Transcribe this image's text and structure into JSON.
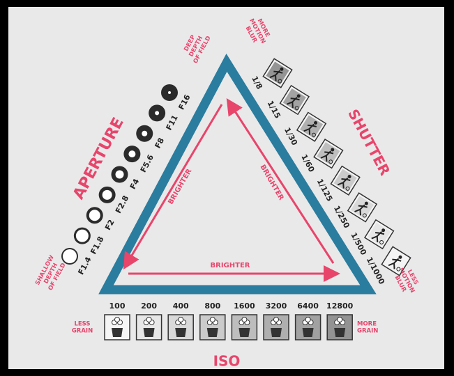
{
  "aperture": {
    "title": "APERTURE",
    "stops": [
      "F1.4",
      "F1.8",
      "F2",
      "F2.8",
      "F4",
      "F5.6",
      "F8",
      "F11",
      "F16"
    ],
    "start_label": [
      "SHALLOW",
      "DEPTH",
      "OF FIELD"
    ],
    "end_label": [
      "DEEP",
      "DEPTH",
      "OF FIELD"
    ]
  },
  "shutter": {
    "title": "SHUTTER",
    "speeds": [
      "1/8",
      "1/15",
      "1/30",
      "1/60",
      "1/125",
      "1/250",
      "1/500",
      "1/1000"
    ],
    "start_label": [
      "MORE",
      "MOTION",
      "BLUR"
    ],
    "end_label": [
      "LESS",
      "MOTION",
      "BLUR"
    ]
  },
  "iso": {
    "title": "ISO",
    "values": [
      "100",
      "200",
      "400",
      "800",
      "1600",
      "3200",
      "6400",
      "12800"
    ],
    "start_label": [
      "LESS",
      "GRAIN"
    ],
    "end_label": [
      "MORE",
      "GRAIN"
    ]
  },
  "arrows": {
    "left": "BRIGHTER",
    "right": "BRIGHTER",
    "bottom": "BRIGHTER"
  }
}
